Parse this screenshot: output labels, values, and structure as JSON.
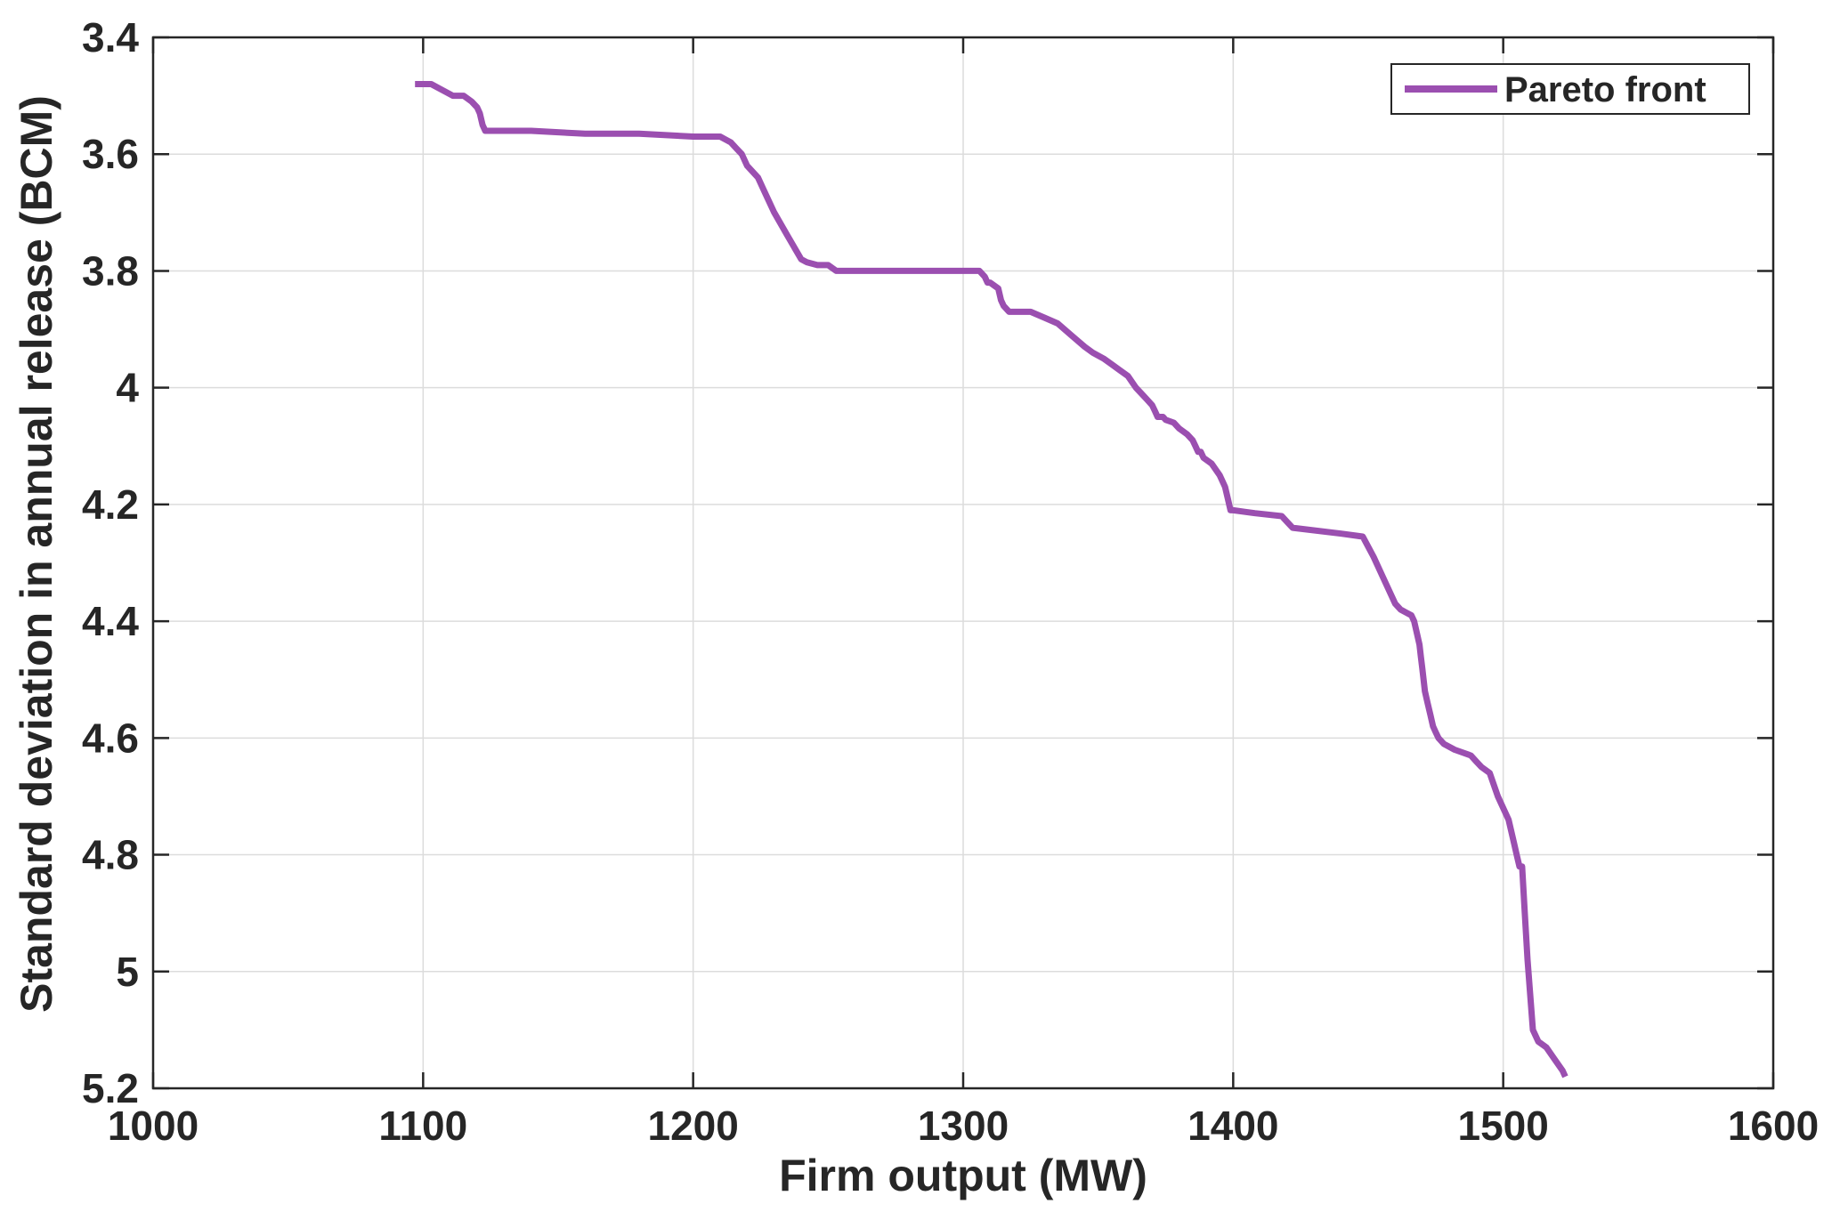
{
  "chart_data": {
    "type": "line",
    "title": "",
    "xlabel": "Firm output (MW)",
    "ylabel": "Standard deviation in annual release (BCM)",
    "xlim": [
      1000,
      1600
    ],
    "ylim": [
      3.4,
      5.2
    ],
    "y_reversed": true,
    "grid": true,
    "legend_position": "top-right",
    "x_ticks": [
      1000,
      1100,
      1200,
      1300,
      1400,
      1500,
      1600
    ],
    "x_tick_labels": [
      "1000",
      "1100",
      "1200",
      "1300",
      "1400",
      "1500",
      "1600"
    ],
    "y_ticks": [
      3.4,
      3.6,
      3.8,
      4.0,
      4.2,
      4.4,
      4.6,
      4.8,
      5.0,
      5.2
    ],
    "y_tick_labels": [
      "3.4",
      "3.6",
      "3.8",
      "4",
      "4.2",
      "4.4",
      "4.6",
      "4.8",
      "5",
      "5.2"
    ],
    "series": [
      {
        "name": "Pareto front",
        "color": "#9b4fb0",
        "x": [
          1097,
          1103,
          1107,
          1111,
          1115,
          1118,
          1120,
          1121,
          1122,
          1123,
          1140,
          1160,
          1180,
          1200,
          1210,
          1212,
          1214,
          1216,
          1218,
          1220,
          1224,
          1226,
          1227,
          1230,
          1235,
          1240,
          1242,
          1246,
          1250,
          1253,
          1270,
          1290,
          1306,
          1308,
          1309,
          1310,
          1313,
          1314,
          1315,
          1317,
          1320,
          1325,
          1330,
          1335,
          1340,
          1345,
          1348,
          1352,
          1355,
          1358,
          1361,
          1364,
          1366,
          1368,
          1370,
          1371,
          1372,
          1373,
          1374,
          1375,
          1378,
          1380,
          1383,
          1385,
          1386,
          1387,
          1388,
          1389,
          1392,
          1395,
          1396,
          1397,
          1398,
          1399,
          1400,
          1408,
          1418,
          1420,
          1422,
          1440,
          1448,
          1452,
          1456,
          1460,
          1462,
          1464,
          1466,
          1467,
          1468,
          1469,
          1469.5,
          1470,
          1470.5,
          1471,
          1472,
          1473,
          1474,
          1475,
          1476,
          1478,
          1482,
          1488,
          1490,
          1492,
          1495,
          1498,
          1502,
          1504,
          1505,
          1506,
          1507,
          1508,
          1509,
          1510,
          1511,
          1513,
          1516,
          1519,
          1522,
          1523
        ],
        "y": [
          3.48,
          3.48,
          3.49,
          3.5,
          3.5,
          3.51,
          3.52,
          3.53,
          3.55,
          3.56,
          3.56,
          3.565,
          3.565,
          3.57,
          3.57,
          3.575,
          3.58,
          3.59,
          3.6,
          3.62,
          3.64,
          3.66,
          3.67,
          3.7,
          3.74,
          3.78,
          3.785,
          3.79,
          3.79,
          3.8,
          3.8,
          3.8,
          3.8,
          3.81,
          3.82,
          3.82,
          3.83,
          3.85,
          3.86,
          3.87,
          3.87,
          3.87,
          3.88,
          3.89,
          3.91,
          3.93,
          3.94,
          3.95,
          3.96,
          3.97,
          3.98,
          4.0,
          4.01,
          4.02,
          4.03,
          4.04,
          4.05,
          4.05,
          4.05,
          4.055,
          4.06,
          4.07,
          4.08,
          4.09,
          4.1,
          4.11,
          4.11,
          4.12,
          4.13,
          4.15,
          4.16,
          4.17,
          4.19,
          4.21,
          4.21,
          4.215,
          4.22,
          4.23,
          4.24,
          4.25,
          4.255,
          4.29,
          4.33,
          4.37,
          4.38,
          4.385,
          4.39,
          4.4,
          4.42,
          4.44,
          4.46,
          4.48,
          4.5,
          4.52,
          4.54,
          4.56,
          4.58,
          4.59,
          4.6,
          4.61,
          4.62,
          4.63,
          4.64,
          4.65,
          4.66,
          4.7,
          4.74,
          4.78,
          4.8,
          4.82,
          4.82,
          4.9,
          4.98,
          5.04,
          5.1,
          5.12,
          5.13,
          5.15,
          5.17,
          5.18
        ]
      }
    ]
  }
}
